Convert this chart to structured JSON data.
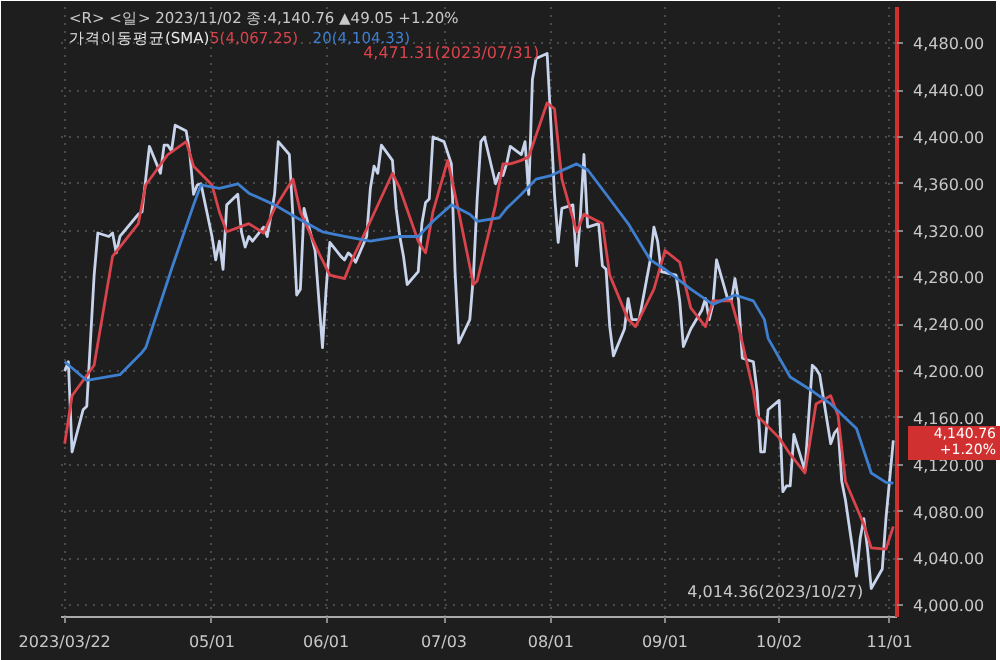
{
  "chart_data": {
    "type": "line",
    "title": "<R> <일> 2023/11/02 종:4,140.76 ▲49.05 +1.20%",
    "legend_title": "가격이동평균(SMA)",
    "legend": "top left",
    "grid": true,
    "line_style": "solid",
    "xlim": [
      "2023-03-21",
      "2023-11-03"
    ],
    "ylim": [
      3990,
      4511
    ],
    "xticks": [
      {
        "value": "2023-03-22",
        "label": "2023/03/22"
      },
      {
        "value": "2023-05-01",
        "label": "05/01"
      },
      {
        "value": "2023-06-01",
        "label": "06/01"
      },
      {
        "value": "2023-07-03",
        "label": "07/03"
      },
      {
        "value": "2023-08-01",
        "label": "08/01"
      },
      {
        "value": "2023-09-01",
        "label": "09/01"
      },
      {
        "value": "2023-10-02",
        "label": "10/02"
      },
      {
        "value": "2023-11-01",
        "label": "11/01"
      }
    ],
    "yticks": [
      {
        "value": 4000,
        "label": "4,000.00"
      },
      {
        "value": 4040,
        "label": "4,040.00"
      },
      {
        "value": 4080,
        "label": "4,080.00"
      },
      {
        "value": 4120,
        "label": "4,120.00"
      },
      {
        "value": 4160,
        "label": "4,160.00"
      },
      {
        "value": 4200,
        "label": "4,200.00"
      },
      {
        "value": 4240,
        "label": "4,240.00"
      },
      {
        "value": 4280,
        "label": "4,280.00"
      },
      {
        "value": 4320,
        "label": "4,320.00"
      },
      {
        "value": 4360,
        "label": "4,360.00"
      },
      {
        "value": 4400,
        "label": "4,400.00"
      },
      {
        "value": 4440,
        "label": "4,440.00"
      },
      {
        "value": 4480,
        "label": "4,480.00"
      }
    ],
    "annotations": [
      {
        "text": "4,471.31(2023/07/31)",
        "x": "2023-07-31",
        "y": 4471.31
      },
      {
        "text": "4,014.36(2023/10/27)",
        "x": "2023-10-27",
        "y": 4014.36
      },
      {
        "text": "4,140.76\n+1.20%",
        "x": "2023-11-02",
        "y": 4140.76
      }
    ],
    "series": [
      {
        "color": "#c8d4ec",
        "x": [
          "2023-03-22",
          "2023-03-23",
          "2023-03-24",
          "2023-03-27",
          "2023-03-28",
          "2023-03-30",
          "2023-03-31",
          "2023-04-03",
          "2023-04-04",
          "2023-04-05",
          "2023-04-06",
          "2023-04-11",
          "2023-04-12",
          "2023-04-13",
          "2023-04-14",
          "2023-04-17",
          "2023-04-18",
          "2023-04-19",
          "2023-04-20",
          "2023-04-21",
          "2023-04-24",
          "2023-04-25",
          "2023-04-26",
          "2023-04-27",
          "2023-04-28",
          "2023-05-01",
          "2023-05-02",
          "2023-05-03",
          "2023-05-04",
          "2023-05-05",
          "2023-05-08",
          "2023-05-09",
          "2023-05-10",
          "2023-05-11",
          "2023-05-12",
          "2023-05-15",
          "2023-05-16",
          "2023-05-18",
          "2023-05-19",
          "2023-05-22",
          "2023-05-23",
          "2023-05-24",
          "2023-05-25",
          "2023-05-26",
          "2023-05-29",
          "2023-05-31",
          "2023-06-01",
          "2023-06-02",
          "2023-06-05",
          "2023-06-06",
          "2023-06-07",
          "2023-06-08",
          "2023-06-09",
          "2023-06-12",
          "2023-06-13",
          "2023-06-14",
          "2023-06-15",
          "2023-06-16",
          "2023-06-19",
          "2023-06-20",
          "2023-06-21",
          "2023-06-22",
          "2023-06-23",
          "2023-06-26",
          "2023-06-27",
          "2023-06-28",
          "2023-06-29",
          "2023-06-30",
          "2023-07-03",
          "2023-07-05",
          "2023-07-06",
          "2023-07-07",
          "2023-07-10",
          "2023-07-11",
          "2023-07-12",
          "2023-07-13",
          "2023-07-14",
          "2023-07-17",
          "2023-07-18",
          "2023-07-19",
          "2023-07-20",
          "2023-07-21",
          "2023-07-24",
          "2023-07-25",
          "2023-07-26",
          "2023-07-27",
          "2023-07-28",
          "2023-07-31",
          "2023-08-01",
          "2023-08-02",
          "2023-08-03",
          "2023-08-04",
          "2023-08-07",
          "2023-08-08",
          "2023-08-09",
          "2023-08-10",
          "2023-08-11",
          "2023-08-14",
          "2023-08-15",
          "2023-08-16",
          "2023-08-17",
          "2023-08-18",
          "2023-08-21",
          "2023-08-22",
          "2023-08-23",
          "2023-08-25",
          "2023-08-28",
          "2023-08-29",
          "2023-08-30",
          "2023-08-31",
          "2023-09-04",
          "2023-09-05",
          "2023-09-06",
          "2023-09-08",
          "2023-09-11",
          "2023-09-12",
          "2023-09-13",
          "2023-09-14",
          "2023-09-15",
          "2023-09-18",
          "2023-09-19",
          "2023-09-20",
          "2023-09-21",
          "2023-09-22",
          "2023-09-25",
          "2023-09-26",
          "2023-09-27",
          "2023-09-28",
          "2023-09-29",
          "2023-10-02",
          "2023-10-03",
          "2023-10-04",
          "2023-10-05",
          "2023-10-06",
          "2023-10-09",
          "2023-10-11",
          "2023-10-12",
          "2023-10-13",
          "2023-10-16",
          "2023-10-17",
          "2023-10-18",
          "2023-10-19",
          "2023-10-20",
          "2023-10-23",
          "2023-10-24",
          "2023-10-25",
          "2023-10-26",
          "2023-10-27",
          "2023-10-30",
          "2023-10-31",
          "2023-11-02"
        ],
        "values": [
          4200,
          4208,
          4131,
          4167,
          4170,
          4282,
          4318,
          4315,
          4318,
          4301,
          4315,
          4334,
          4336,
          4364,
          4392,
          4369,
          4393,
          4393,
          4388,
          4410,
          4405,
          4385,
          4351,
          4359,
          4360,
          4315,
          4295,
          4311,
          4287,
          4342,
          4351,
          4319,
          4306,
          4315,
          4311,
          4323,
          4315,
          4351,
          4396,
          4385,
          4331,
          4265,
          4270,
          4339,
          4303,
          4220,
          4270,
          4310,
          4298,
          4295,
          4301,
          4298,
          4293,
          4315,
          4356,
          4375,
          4369,
          4393,
          4380,
          4339,
          4315,
          4298,
          4274,
          4285,
          4326,
          4344,
          4347,
          4400,
          4396,
          4377,
          4285,
          4224,
          4244,
          4282,
          4347,
          4396,
          4400,
          4360,
          4369,
          4367,
          4377,
          4392,
          4385,
          4396,
          4351,
          4449,
          4467,
          4471.31,
          4413,
          4351,
          4310,
          4339,
          4342,
          4290,
          4331,
          4385,
          4323,
          4326,
          4290,
          4287,
          4238,
          4213,
          4236,
          4262,
          4244,
          4244,
          4295,
          4323,
          4311,
          4285,
          4282,
          4260,
          4221,
          4236,
          4252,
          4262,
          4244,
          4257,
          4295,
          4262,
          4260,
          4279,
          4260,
          4211,
          4208,
          4183,
          4131,
          4131,
          4167,
          4175,
          4097,
          4102,
          4102,
          4146,
          4115,
          4205,
          4202,
          4197,
          4138,
          4147,
          4151,
          4106,
          4090,
          4025,
          4057,
          4074,
          4048,
          4014.36,
          4031,
          4074,
          4140.76
        ]
      },
      {
        "name": "5(4,067.25)",
        "color": "#d9434b",
        "x": [
          "2023-03-22",
          "2023-03-24",
          "2023-03-30",
          "2023-04-04",
          "2023-04-11",
          "2023-04-13",
          "2023-04-19",
          "2023-04-24",
          "2023-04-26",
          "2023-05-01",
          "2023-05-03",
          "2023-05-05",
          "2023-05-11",
          "2023-05-15",
          "2023-05-18",
          "2023-05-23",
          "2023-05-25",
          "2023-05-30",
          "2023-06-02",
          "2023-06-06",
          "2023-06-08",
          "2023-06-13",
          "2023-06-19",
          "2023-06-21",
          "2023-06-26",
          "2023-06-28",
          "2023-06-30",
          "2023-07-04",
          "2023-07-07",
          "2023-07-11",
          "2023-07-12",
          "2023-07-17",
          "2023-07-19",
          "2023-07-21",
          "2023-07-24",
          "2023-07-26",
          "2023-07-31",
          "2023-08-02",
          "2023-08-04",
          "2023-08-08",
          "2023-08-10",
          "2023-08-15",
          "2023-08-17",
          "2023-08-22",
          "2023-08-24",
          "2023-08-29",
          "2023-09-01",
          "2023-09-05",
          "2023-09-08",
          "2023-09-12",
          "2023-09-14",
          "2023-09-19",
          "2023-09-21",
          "2023-09-25",
          "2023-09-26",
          "2023-10-02",
          "2023-10-05",
          "2023-10-09",
          "2023-10-12",
          "2023-10-16",
          "2023-10-18",
          "2023-10-20",
          "2023-10-25",
          "2023-10-27",
          "2023-10-31",
          "2023-11-02"
        ],
        "values": [
          4138,
          4179,
          4205,
          4298,
          4326,
          4359,
          4385,
          4396,
          4375,
          4359,
          4336,
          4319,
          4326,
          4318,
          4339,
          4364,
          4336,
          4301,
          4282,
          4279,
          4295,
          4328,
          4369,
          4356,
          4311,
          4301,
          4336,
          4380,
          4336,
          4274,
          4277,
          4342,
          4377,
          4377,
          4380,
          4383,
          4429,
          4424,
          4364,
          4319,
          4334,
          4326,
          4282,
          4244,
          4238,
          4270,
          4303,
          4293,
          4254,
          4238,
          4260,
          4260,
          4238,
          4183,
          4162,
          4143,
          4129,
          4113,
          4172,
          4179,
          4162,
          4106,
          4069,
          4049,
          4048,
          4067.25
        ]
      },
      {
        "name": "20(4,104.33)",
        "color": "#3f7fd0",
        "x": [
          "2023-03-22",
          "2023-03-28",
          "2023-04-06",
          "2023-04-12",
          "2023-04-13",
          "2023-04-20",
          "2023-04-26",
          "2023-04-28",
          "2023-05-03",
          "2023-05-08",
          "2023-05-11",
          "2023-05-18",
          "2023-05-24",
          "2023-05-31",
          "2023-06-06",
          "2023-06-13",
          "2023-06-21",
          "2023-06-26",
          "2023-06-30",
          "2023-07-05",
          "2023-07-10",
          "2023-07-12",
          "2023-07-18",
          "2023-07-20",
          "2023-07-24",
          "2023-07-28",
          "2023-08-01",
          "2023-08-08",
          "2023-08-11",
          "2023-08-17",
          "2023-08-22",
          "2023-08-28",
          "2023-09-01",
          "2023-09-08",
          "2023-09-14",
          "2023-09-20",
          "2023-09-25",
          "2023-09-28",
          "2023-09-29",
          "2023-10-05",
          "2023-10-11",
          "2023-10-16",
          "2023-10-23",
          "2023-10-27",
          "2023-10-31",
          "2023-11-02"
        ],
        "values": [
          4208,
          4192,
          4197,
          4216,
          4220,
          4287,
          4342,
          4359,
          4356,
          4360,
          4352,
          4342,
          4331,
          4319,
          4315,
          4311,
          4315,
          4315,
          4328,
          4342,
          4334,
          4328,
          4331,
          4339,
          4351,
          4364,
          4367,
          4377,
          4372,
          4347,
          4326,
          4295,
          4287,
          4270,
          4257,
          4265,
          4260,
          4244,
          4228,
          4195,
          4183,
          4172,
          4151,
          4113,
          4105,
          4104.33
        ]
      }
    ]
  }
}
